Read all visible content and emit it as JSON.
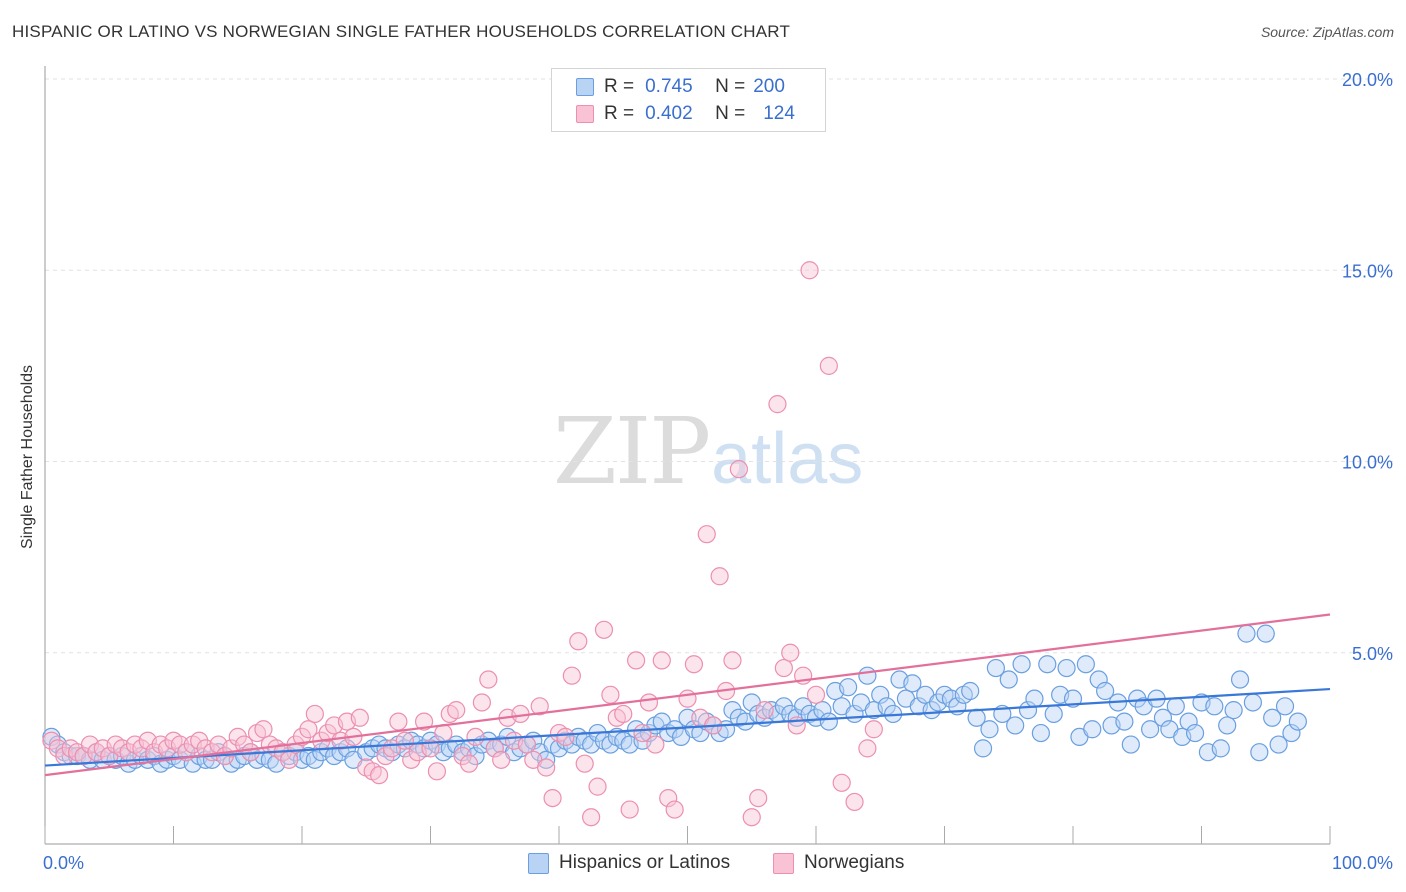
{
  "header": {
    "title": "HISPANIC OR LATINO VS NORWEGIAN SINGLE FATHER HOUSEHOLDS CORRELATION CHART",
    "source": "Source: ZipAtlas.com"
  },
  "watermark": {
    "zip": "ZIP",
    "atlas": "atlas"
  },
  "stats": {
    "r_label": "R =",
    "n_label": "N =",
    "rows": [
      {
        "r": "0.745",
        "n": "200",
        "color": "#6a9fe0"
      },
      {
        "r": "0.402",
        "n": "124",
        "color": "#ec8fb0"
      }
    ]
  },
  "legend": [
    {
      "label": "Hispanics or Latinos",
      "color": "#6a9fe0"
    },
    {
      "label": "Norwegians",
      "color": "#ec8fb0"
    }
  ],
  "chart_data": {
    "type": "scatter",
    "title": "HISPANIC OR LATINO VS NORWEGIAN SINGLE FATHER HOUSEHOLDS CORRELATION CHART",
    "ylabel": "Single Father Households",
    "xlabel": "",
    "xlim": [
      0,
      100
    ],
    "ylim": [
      0,
      20
    ],
    "x_tick_labels": [
      "0.0%",
      "100.0%"
    ],
    "y_ticks": [
      5,
      10,
      15,
      20
    ],
    "y_tick_labels": [
      "5.0%",
      "10.0%",
      "15.0%",
      "20.0%"
    ],
    "grid": "horizontal dashed",
    "series": [
      {
        "name": "Hispanics or Latinos",
        "color": "#6a9fe0",
        "points": [
          [
            0.5,
            2.8
          ],
          [
            1,
            2.6
          ],
          [
            1.5,
            2.4
          ],
          [
            2,
            2.3
          ],
          [
            2.5,
            2.3
          ],
          [
            3,
            2.3
          ],
          [
            3.5,
            2.2
          ],
          [
            4,
            2.4
          ],
          [
            4.5,
            2.2
          ],
          [
            5,
            2.3
          ],
          [
            5.5,
            2.2
          ],
          [
            6,
            2.3
          ],
          [
            6.5,
            2.1
          ],
          [
            7,
            2.2
          ],
          [
            7.5,
            2.3
          ],
          [
            8,
            2.2
          ],
          [
            8.5,
            2.3
          ],
          [
            9,
            2.1
          ],
          [
            9.5,
            2.2
          ],
          [
            10,
            2.3
          ],
          [
            10.5,
            2.2
          ],
          [
            11,
            2.4
          ],
          [
            11.5,
            2.1
          ],
          [
            12,
            2.3
          ],
          [
            12.5,
            2.2
          ],
          [
            13,
            2.2
          ],
          [
            13.5,
            2.4
          ],
          [
            14,
            2.3
          ],
          [
            14.5,
            2.1
          ],
          [
            15,
            2.2
          ],
          [
            15.5,
            2.3
          ],
          [
            16,
            2.4
          ],
          [
            16.5,
            2.2
          ],
          [
            17,
            2.3
          ],
          [
            17.5,
            2.2
          ],
          [
            18,
            2.1
          ],
          [
            18.5,
            2.4
          ],
          [
            19,
            2.3
          ],
          [
            19.5,
            2.4
          ],
          [
            20,
            2.2
          ],
          [
            20.5,
            2.3
          ],
          [
            21,
            2.2
          ],
          [
            21.5,
            2.4
          ],
          [
            22,
            2.5
          ],
          [
            22.5,
            2.3
          ],
          [
            23,
            2.4
          ],
          [
            23.5,
            2.5
          ],
          [
            24,
            2.2
          ],
          [
            25,
            2.4
          ],
          [
            25.5,
            2.5
          ],
          [
            26,
            2.6
          ],
          [
            26.5,
            2.5
          ],
          [
            27,
            2.4
          ],
          [
            27.5,
            2.6
          ],
          [
            28,
            2.5
          ],
          [
            28.5,
            2.7
          ],
          [
            29,
            2.6
          ],
          [
            29.5,
            2.5
          ],
          [
            30,
            2.7
          ],
          [
            30.5,
            2.6
          ],
          [
            31,
            2.4
          ],
          [
            31.5,
            2.5
          ],
          [
            32,
            2.6
          ],
          [
            32.5,
            2.4
          ],
          [
            33,
            2.5
          ],
          [
            33.5,
            2.3
          ],
          [
            34,
            2.6
          ],
          [
            34.5,
            2.7
          ],
          [
            35,
            2.5
          ],
          [
            35.5,
            2.6
          ],
          [
            36,
            2.8
          ],
          [
            36.5,
            2.4
          ],
          [
            37,
            2.5
          ],
          [
            37.5,
            2.6
          ],
          [
            38,
            2.7
          ],
          [
            38.5,
            2.4
          ],
          [
            39,
            2.2
          ],
          [
            39.5,
            2.6
          ],
          [
            40,
            2.5
          ],
          [
            40.5,
            2.7
          ],
          [
            41,
            2.6
          ],
          [
            41.5,
            2.8
          ],
          [
            42,
            2.7
          ],
          [
            42.5,
            2.6
          ],
          [
            43,
            2.9
          ],
          [
            43.5,
            2.7
          ],
          [
            44,
            2.6
          ],
          [
            44.5,
            2.8
          ],
          [
            45,
            2.7
          ],
          [
            45.5,
            2.6
          ],
          [
            46,
            3.0
          ],
          [
            46.5,
            2.7
          ],
          [
            47,
            2.9
          ],
          [
            47.5,
            3.1
          ],
          [
            48,
            3.2
          ],
          [
            48.5,
            2.9
          ],
          [
            49,
            3.0
          ],
          [
            49.5,
            2.8
          ],
          [
            50,
            3.3
          ],
          [
            50.5,
            3.0
          ],
          [
            51,
            2.9
          ],
          [
            51.5,
            3.2
          ],
          [
            52,
            3.1
          ],
          [
            52.5,
            2.9
          ],
          [
            53,
            3.0
          ],
          [
            53.5,
            3.5
          ],
          [
            54,
            3.3
          ],
          [
            54.5,
            3.2
          ],
          [
            55,
            3.7
          ],
          [
            55.5,
            3.4
          ],
          [
            56,
            3.3
          ],
          [
            56.5,
            3.5
          ],
          [
            57,
            3.4
          ],
          [
            57.5,
            3.6
          ],
          [
            58,
            3.4
          ],
          [
            58.5,
            3.3
          ],
          [
            59,
            3.6
          ],
          [
            59.5,
            3.4
          ],
          [
            60,
            3.3
          ],
          [
            60.5,
            3.5
          ],
          [
            61,
            3.2
          ],
          [
            61.5,
            4.0
          ],
          [
            62,
            3.6
          ],
          [
            62.5,
            4.1
          ],
          [
            63,
            3.4
          ],
          [
            63.5,
            3.7
          ],
          [
            64,
            4.4
          ],
          [
            64.5,
            3.5
          ],
          [
            65,
            3.9
          ],
          [
            65.5,
            3.6
          ],
          [
            66,
            3.4
          ],
          [
            66.5,
            4.3
          ],
          [
            67,
            3.8
          ],
          [
            67.5,
            4.2
          ],
          [
            68,
            3.6
          ],
          [
            68.5,
            3.9
          ],
          [
            69,
            3.5
          ],
          [
            69.5,
            3.7
          ],
          [
            70,
            3.9
          ],
          [
            70.5,
            3.8
          ],
          [
            71,
            3.6
          ],
          [
            71.5,
            3.9
          ],
          [
            72,
            4.0
          ],
          [
            72.5,
            3.3
          ],
          [
            73,
            2.5
          ],
          [
            73.5,
            3.0
          ],
          [
            74,
            4.6
          ],
          [
            74.5,
            3.4
          ],
          [
            75,
            4.3
          ],
          [
            75.5,
            3.1
          ],
          [
            76,
            4.7
          ],
          [
            76.5,
            3.5
          ],
          [
            77,
            3.8
          ],
          [
            77.5,
            2.9
          ],
          [
            78,
            4.7
          ],
          [
            78.5,
            3.4
          ],
          [
            79,
            3.9
          ],
          [
            79.5,
            4.6
          ],
          [
            80,
            3.8
          ],
          [
            80.5,
            2.8
          ],
          [
            81,
            4.7
          ],
          [
            81.5,
            3.0
          ],
          [
            82,
            4.3
          ],
          [
            82.5,
            4.0
          ],
          [
            83,
            3.1
          ],
          [
            83.5,
            3.7
          ],
          [
            84,
            3.2
          ],
          [
            84.5,
            2.6
          ],
          [
            85,
            3.8
          ],
          [
            85.5,
            3.6
          ],
          [
            86,
            3.0
          ],
          [
            86.5,
            3.8
          ],
          [
            87,
            3.3
          ],
          [
            87.5,
            3.0
          ],
          [
            88,
            3.6
          ],
          [
            88.5,
            2.8
          ],
          [
            89,
            3.2
          ],
          [
            89.5,
            2.9
          ],
          [
            90,
            3.7
          ],
          [
            90.5,
            2.4
          ],
          [
            91,
            3.6
          ],
          [
            91.5,
            2.5
          ],
          [
            92,
            3.1
          ],
          [
            92.5,
            3.5
          ],
          [
            93,
            4.3
          ],
          [
            93.5,
            5.5
          ],
          [
            94,
            3.7
          ],
          [
            94.5,
            2.4
          ],
          [
            95,
            5.5
          ],
          [
            95.5,
            3.3
          ],
          [
            96,
            2.6
          ],
          [
            96.5,
            3.6
          ],
          [
            97,
            2.9
          ],
          [
            97.5,
            3.2
          ]
        ],
        "trend": [
          [
            0,
            2.05
          ],
          [
            100,
            4.05
          ]
        ]
      },
      {
        "name": "Norwegians",
        "color": "#ec8fb0",
        "points": [
          [
            0.5,
            2.7
          ],
          [
            1,
            2.5
          ],
          [
            1.5,
            2.3
          ],
          [
            2,
            2.5
          ],
          [
            2.5,
            2.4
          ],
          [
            3,
            2.3
          ],
          [
            3.5,
            2.6
          ],
          [
            4,
            2.4
          ],
          [
            4.5,
            2.5
          ],
          [
            5,
            2.3
          ],
          [
            5.5,
            2.6
          ],
          [
            6,
            2.5
          ],
          [
            6.5,
            2.4
          ],
          [
            7,
            2.6
          ],
          [
            7.5,
            2.5
          ],
          [
            8,
            2.7
          ],
          [
            8.5,
            2.4
          ],
          [
            9,
            2.6
          ],
          [
            9.5,
            2.5
          ],
          [
            10,
            2.7
          ],
          [
            10.5,
            2.6
          ],
          [
            11,
            2.4
          ],
          [
            11.5,
            2.6
          ],
          [
            12,
            2.7
          ],
          [
            12.5,
            2.5
          ],
          [
            13,
            2.4
          ],
          [
            13.5,
            2.6
          ],
          [
            14,
            2.3
          ],
          [
            14.5,
            2.5
          ],
          [
            15,
            2.8
          ],
          [
            15.5,
            2.6
          ],
          [
            16,
            2.4
          ],
          [
            16.5,
            2.9
          ],
          [
            17,
            3.0
          ],
          [
            17.5,
            2.6
          ],
          [
            18,
            2.5
          ],
          [
            18.5,
            2.4
          ],
          [
            19,
            2.2
          ],
          [
            19.5,
            2.6
          ],
          [
            20,
            2.8
          ],
          [
            20.5,
            3.0
          ],
          [
            21,
            3.4
          ],
          [
            21.5,
            2.7
          ],
          [
            22,
            2.9
          ],
          [
            22.5,
            3.1
          ],
          [
            23,
            2.7
          ],
          [
            23.5,
            3.2
          ],
          [
            24,
            2.8
          ],
          [
            24.5,
            3.3
          ],
          [
            25,
            2.0
          ],
          [
            25.5,
            1.9
          ],
          [
            26,
            1.8
          ],
          [
            26.5,
            2.3
          ],
          [
            27,
            2.5
          ],
          [
            27.5,
            3.2
          ],
          [
            28,
            2.7
          ],
          [
            28.5,
            2.2
          ],
          [
            29,
            2.4
          ],
          [
            29.5,
            3.2
          ],
          [
            30,
            2.5
          ],
          [
            30.5,
            1.9
          ],
          [
            31,
            2.9
          ],
          [
            31.5,
            3.4
          ],
          [
            32,
            3.5
          ],
          [
            32.5,
            2.3
          ],
          [
            33,
            2.1
          ],
          [
            33.5,
            2.8
          ],
          [
            34,
            3.7
          ],
          [
            34.5,
            4.3
          ],
          [
            35,
            2.5
          ],
          [
            35.5,
            2.2
          ],
          [
            36,
            3.3
          ],
          [
            36.5,
            2.7
          ],
          [
            37,
            3.4
          ],
          [
            37.5,
            2.6
          ],
          [
            38,
            2.2
          ],
          [
            38.5,
            3.6
          ],
          [
            39,
            2.0
          ],
          [
            39.5,
            1.2
          ],
          [
            40,
            2.9
          ],
          [
            40.5,
            2.8
          ],
          [
            41,
            4.4
          ],
          [
            41.5,
            5.3
          ],
          [
            42,
            2.1
          ],
          [
            42.5,
            0.7
          ],
          [
            43,
            1.5
          ],
          [
            43.5,
            5.6
          ],
          [
            44,
            3.9
          ],
          [
            44.5,
            3.3
          ],
          [
            45,
            3.4
          ],
          [
            45.5,
            0.9
          ],
          [
            46,
            4.8
          ],
          [
            46.5,
            2.9
          ],
          [
            47,
            3.7
          ],
          [
            47.5,
            2.6
          ],
          [
            48,
            4.8
          ],
          [
            48.5,
            1.2
          ],
          [
            49,
            0.9
          ],
          [
            50,
            3.8
          ],
          [
            50.5,
            4.7
          ],
          [
            51,
            3.3
          ],
          [
            51.5,
            8.1
          ],
          [
            52,
            3.1
          ],
          [
            52.5,
            7.0
          ],
          [
            53,
            4.0
          ],
          [
            53.5,
            4.8
          ],
          [
            54,
            9.8
          ],
          [
            55,
            0.7
          ],
          [
            55.5,
            1.2
          ],
          [
            56,
            3.5
          ],
          [
            57,
            11.5
          ],
          [
            57.5,
            4.6
          ],
          [
            58,
            5.0
          ],
          [
            58.5,
            3.1
          ],
          [
            59,
            4.4
          ],
          [
            59.5,
            15.0
          ],
          [
            60,
            3.9
          ],
          [
            61,
            12.5
          ],
          [
            62,
            1.6
          ],
          [
            63,
            1.1
          ],
          [
            64,
            2.5
          ],
          [
            64.5,
            3.0
          ]
        ],
        "trend": [
          [
            0,
            1.8
          ],
          [
            100,
            6.0
          ]
        ]
      }
    ]
  }
}
